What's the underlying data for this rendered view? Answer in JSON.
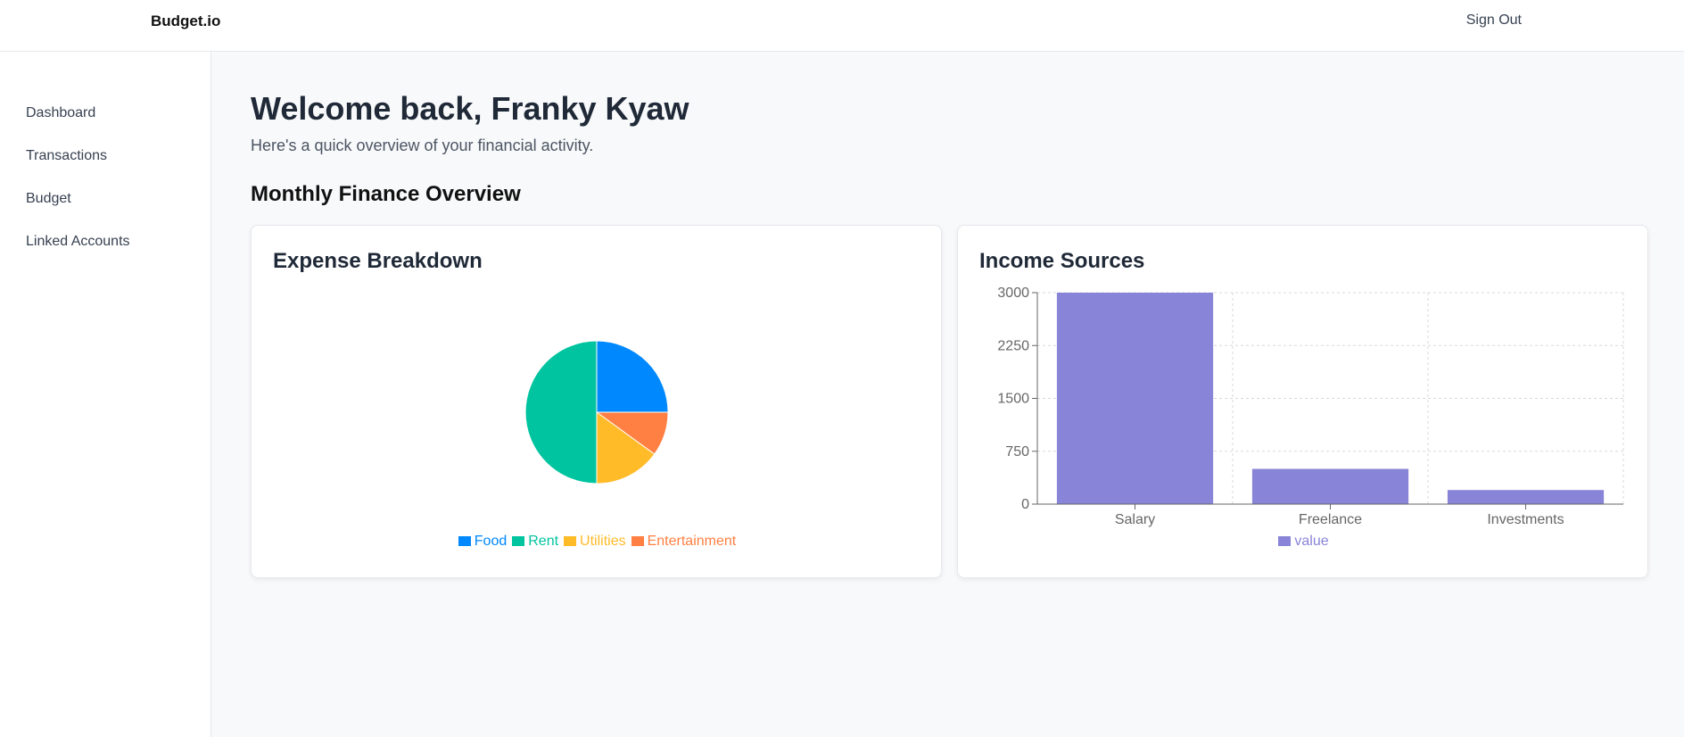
{
  "header": {
    "brand": "Budget.io",
    "sign_out": "Sign Out"
  },
  "sidebar": {
    "items": [
      {
        "label": "Dashboard"
      },
      {
        "label": "Transactions"
      },
      {
        "label": "Budget"
      },
      {
        "label": "Linked Accounts"
      }
    ]
  },
  "main": {
    "welcome": "Welcome back, Franky Kyaw",
    "subtitle": "Here's a quick overview of your financial activity.",
    "section_title": "Monthly Finance Overview"
  },
  "cards": {
    "expense_title": "Expense Breakdown",
    "income_title": "Income Sources"
  },
  "chart_data": [
    {
      "type": "pie",
      "title": "Expense Breakdown",
      "legend_position": "bottom",
      "slices": [
        {
          "label": "Food",
          "value": 25,
          "color": "#0088fe"
        },
        {
          "label": "Entertainment",
          "value": 10,
          "color": "#ff8042"
        },
        {
          "label": "Utilities",
          "value": 15,
          "color": "#ffbb28"
        },
        {
          "label": "Rent",
          "value": 50,
          "color": "#00c49f"
        }
      ],
      "legend": [
        {
          "label": "Food",
          "color": "#0088fe"
        },
        {
          "label": "Rent",
          "color": "#00c49f"
        },
        {
          "label": "Utilities",
          "color": "#ffbb28"
        },
        {
          "label": "Entertainment",
          "color": "#ff8042"
        }
      ]
    },
    {
      "type": "bar",
      "title": "Income Sources",
      "categories": [
        "Salary",
        "Freelance",
        "Investments"
      ],
      "series": [
        {
          "name": "value",
          "values": [
            3000,
            500,
            200
          ],
          "color": "#8884d8"
        }
      ],
      "ylim": [
        0,
        3000
      ],
      "yticks": [
        "0",
        "750",
        "1500",
        "2250",
        "3000"
      ],
      "grid": true,
      "legend_position": "bottom"
    }
  ]
}
